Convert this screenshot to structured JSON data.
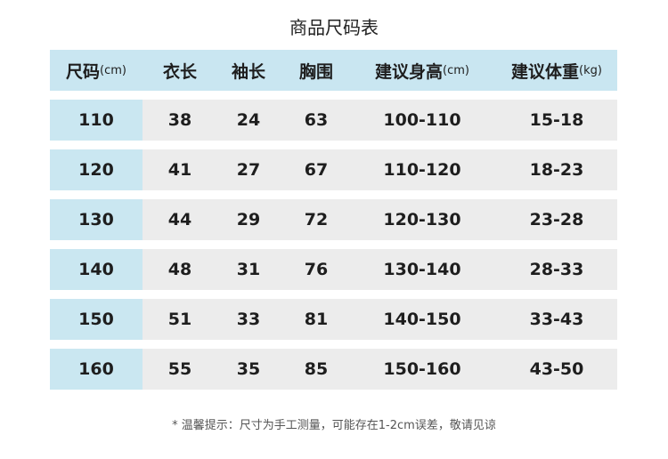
{
  "title": "商品尺码表",
  "header": [
    {
      "label": "尺码",
      "unit": "(cm)"
    },
    {
      "label": "衣长",
      "unit": ""
    },
    {
      "label": "袖长",
      "unit": ""
    },
    {
      "label": "胸围",
      "unit": ""
    },
    {
      "label": "建议身高",
      "unit": "(cm)"
    },
    {
      "label": "建议体重",
      "unit": "(kg)"
    }
  ],
  "rows": [
    [
      "110",
      "38",
      "24",
      "63",
      "100-110",
      "15-18"
    ],
    [
      "120",
      "41",
      "27",
      "67",
      "110-120",
      "18-23"
    ],
    [
      "130",
      "44",
      "29",
      "72",
      "120-130",
      "23-28"
    ],
    [
      "140",
      "48",
      "31",
      "76",
      "130-140",
      "28-33"
    ],
    [
      "150",
      "51",
      "33",
      "81",
      "140-150",
      "33-43"
    ],
    [
      "160",
      "55",
      "35",
      "85",
      "150-160",
      "43-50"
    ]
  ],
  "note": "* 温馨提示：尺寸为手工测量，可能存在1-2cm误差，敬请见谅",
  "colors": {
    "header_bg": "#c9e6f1",
    "size_col_bg": "#cae7f1",
    "row_bg": "#ececec"
  }
}
